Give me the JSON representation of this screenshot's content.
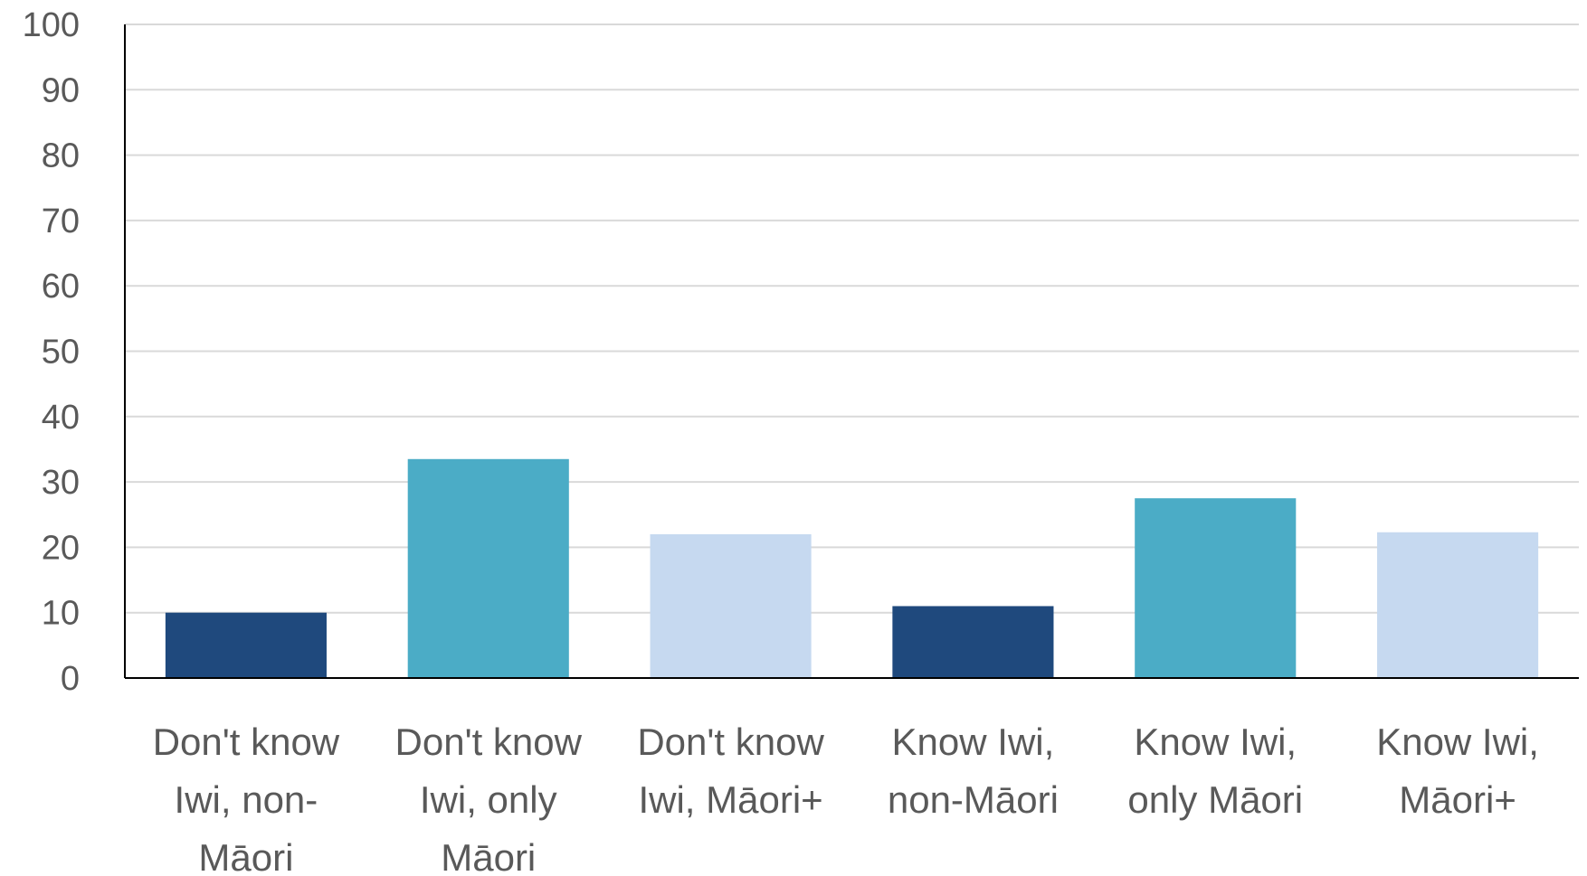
{
  "chart_data": {
    "type": "bar",
    "categories": [
      [
        "Don't know",
        "Iwi, non-",
        "Māori"
      ],
      [
        "Don't know",
        "Iwi, only",
        "Māori"
      ],
      [
        "Don't know",
        "Iwi, Māori+"
      ],
      [
        "Know Iwi,",
        "non-Māori"
      ],
      [
        "Know Iwi,",
        "only Māori"
      ],
      [
        "Know Iwi,",
        "Māori+"
      ]
    ],
    "values": [
      10,
      33.5,
      22,
      11,
      27.5,
      22.3
    ],
    "colors": [
      "#1f497d",
      "#4bacc6",
      "#c6d9f0",
      "#1f497d",
      "#4bacc6",
      "#c6d9f0"
    ],
    "ylim": [
      0,
      100
    ],
    "yticks": [
      0,
      10,
      20,
      30,
      40,
      50,
      60,
      70,
      80,
      90,
      100
    ],
    "grid": true,
    "title": "",
    "xlabel": "",
    "ylabel": ""
  }
}
